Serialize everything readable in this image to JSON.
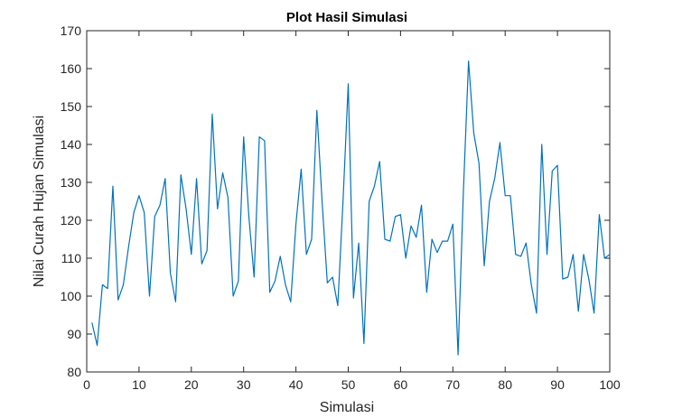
{
  "chart_data": {
    "type": "line",
    "title": "Plot Hasil Simulasi",
    "xlabel": "Simulasi",
    "ylabel": "Nilai Curah Hujan Simulasi",
    "xlim": [
      0,
      100
    ],
    "ylim": [
      80,
      170
    ],
    "xticks": [
      0,
      10,
      20,
      30,
      40,
      50,
      60,
      70,
      80,
      90,
      100
    ],
    "yticks": [
      80,
      90,
      100,
      110,
      120,
      130,
      140,
      150,
      160,
      170
    ],
    "grid": false,
    "series": [
      {
        "color": "#0072bd",
        "x": [
          1,
          2,
          3,
          4,
          5,
          6,
          7,
          8,
          9,
          10,
          11,
          12,
          13,
          14,
          15,
          16,
          17,
          18,
          19,
          20,
          21,
          22,
          23,
          24,
          25,
          26,
          27,
          28,
          29,
          30,
          31,
          32,
          33,
          34,
          35,
          36,
          37,
          38,
          39,
          40,
          41,
          42,
          43,
          44,
          45,
          46,
          47,
          48,
          49,
          50,
          51,
          52,
          53,
          54,
          55,
          56,
          57,
          58,
          59,
          60,
          61,
          62,
          63,
          64,
          65,
          66,
          67,
          68,
          69,
          70,
          71,
          72,
          73,
          74,
          75,
          76,
          77,
          78,
          79,
          80,
          81,
          82,
          83,
          84,
          85,
          86,
          87,
          88,
          89,
          90,
          91,
          92,
          93,
          94,
          95,
          96,
          97,
          98,
          99,
          100
        ],
        "values": [
          93,
          87,
          103,
          102,
          129,
          99,
          103,
          113,
          122,
          126.5,
          122,
          100,
          121,
          124,
          131,
          106,
          98.5,
          132,
          123,
          111,
          131,
          108.5,
          112,
          148,
          123,
          132.5,
          126,
          100,
          104,
          142,
          121,
          105,
          142,
          141,
          101,
          104,
          110.5,
          103,
          98.5,
          119,
          133.5,
          111,
          115,
          149,
          125,
          103.5,
          105,
          97.5,
          125,
          156,
          99.5,
          114,
          87.5,
          125,
          129,
          135.5,
          115,
          114.5,
          121,
          121.5,
          110,
          118.5,
          115.5,
          124,
          101,
          115,
          111.5,
          114.5,
          114.5,
          119,
          84.5,
          127,
          162,
          143,
          135,
          108,
          125,
          131,
          140.5,
          126.5,
          126.5,
          111,
          110.5,
          114,
          103,
          95.5,
          140,
          111,
          133,
          134.5,
          104.5,
          105,
          111,
          96,
          111,
          104.5,
          95.5,
          121.5,
          110,
          111
        ]
      }
    ]
  }
}
